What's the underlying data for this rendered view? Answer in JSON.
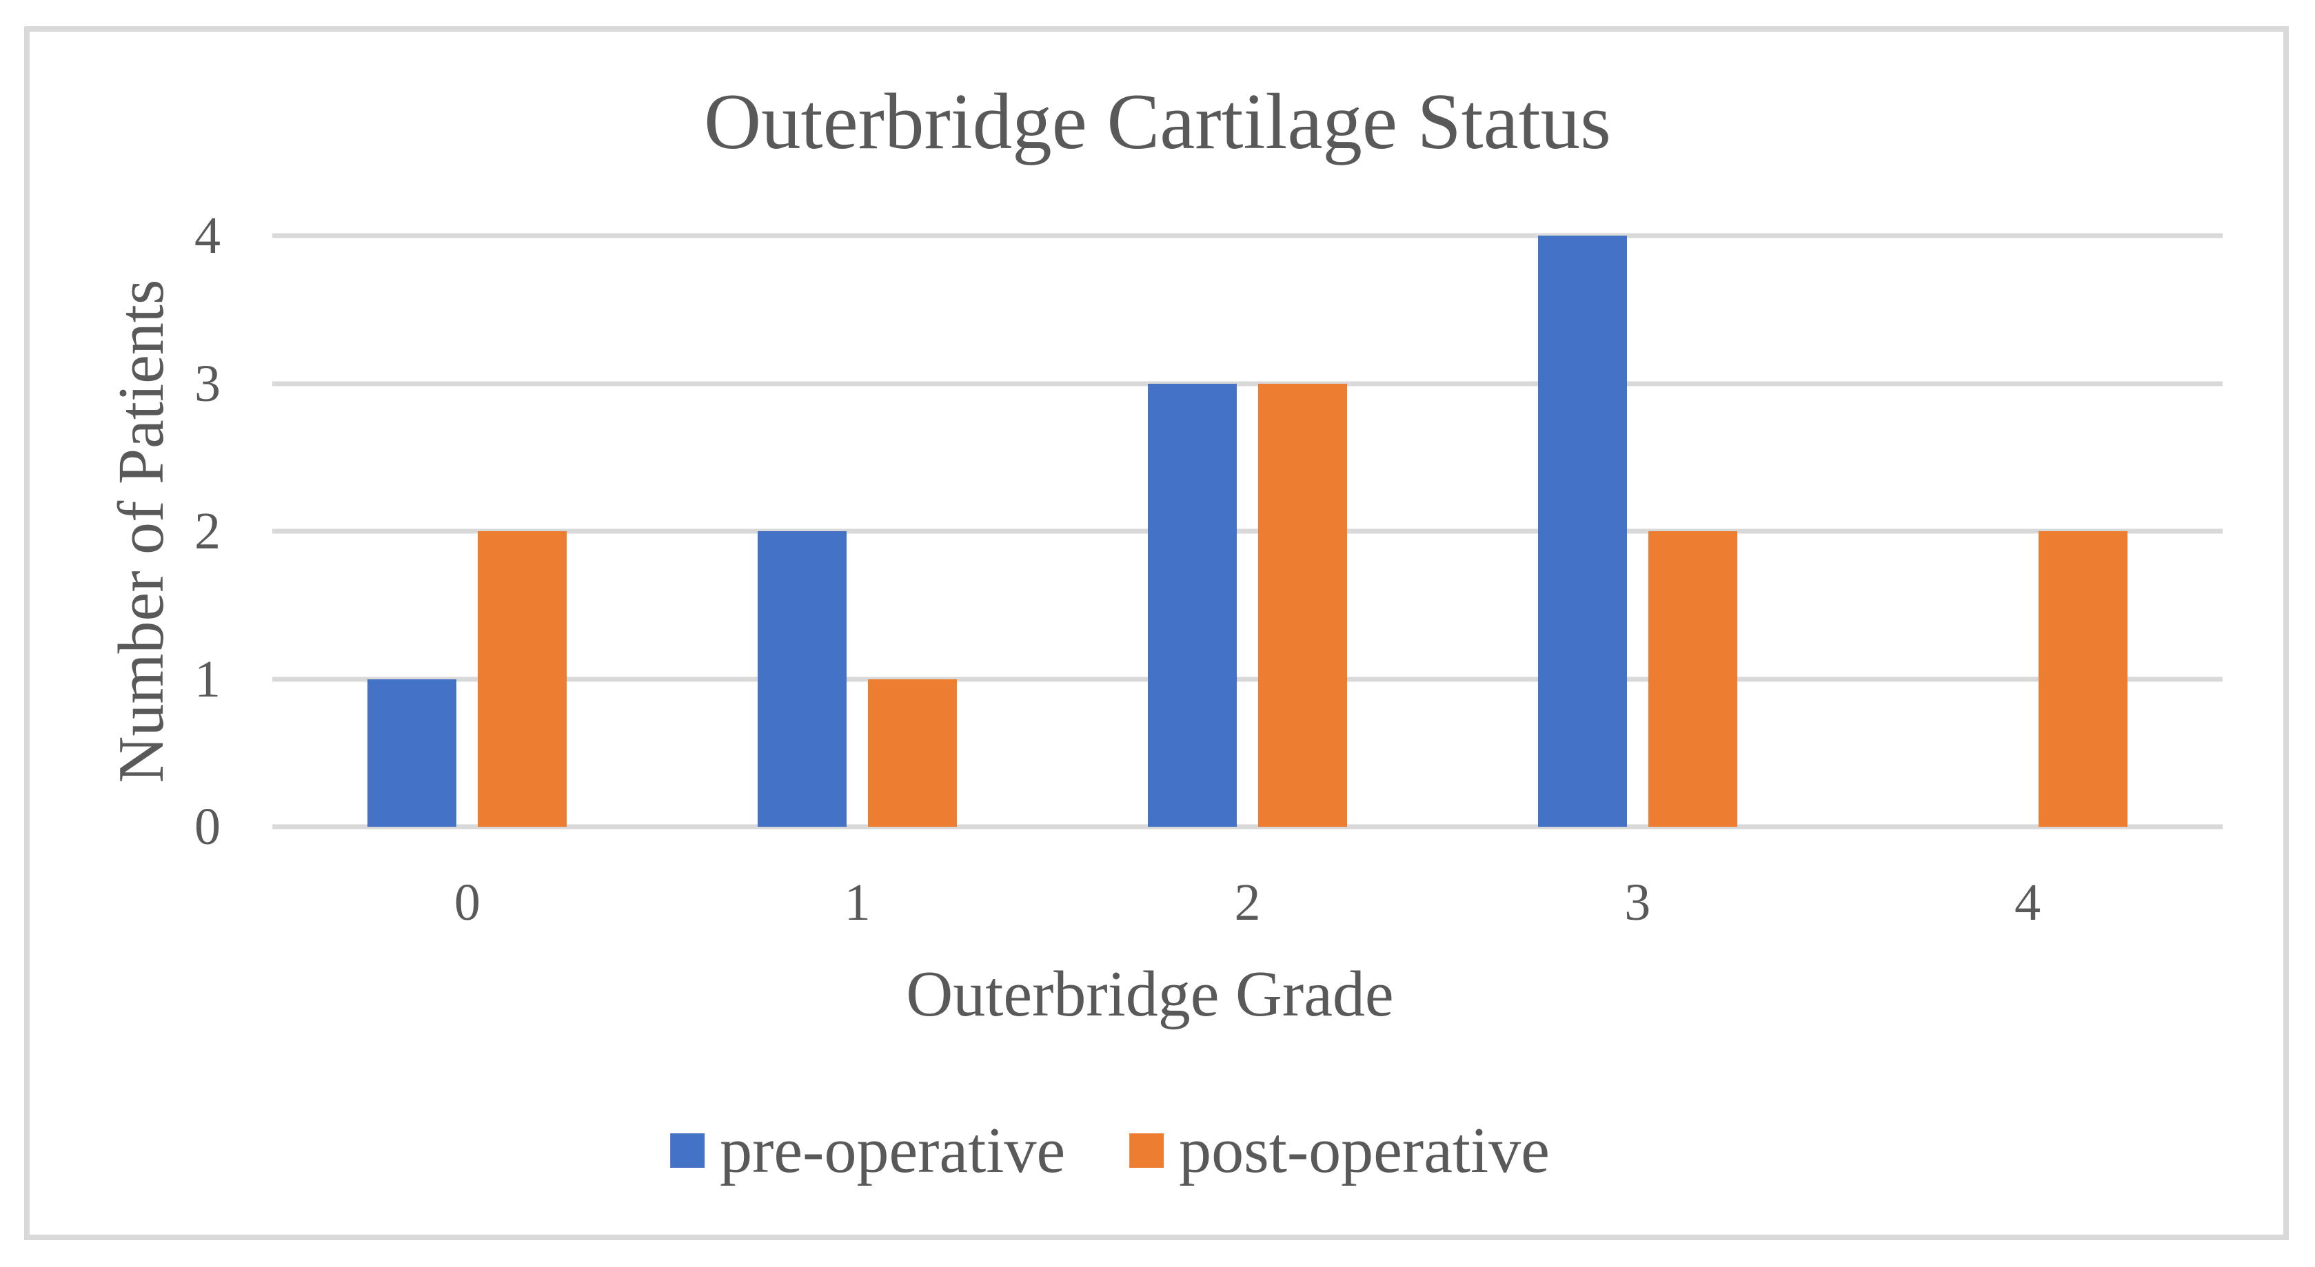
{
  "figure": {
    "background": "#FFFFFF",
    "border_color": "#D9D9D9",
    "text_color": "#595959"
  },
  "chart_data": {
    "type": "bar",
    "title": "Outerbridge Cartilage Status",
    "xlabel": "Outerbridge Grade",
    "ylabel": "Number of Patients",
    "categories": [
      "0",
      "1",
      "2",
      "3",
      "4"
    ],
    "series": [
      {
        "name": "pre-operative",
        "color": "#4472C4",
        "values": [
          1,
          2,
          3,
          4,
          0
        ]
      },
      {
        "name": "post-operative",
        "color": "#ED7D31",
        "values": [
          2,
          1,
          3,
          2,
          2
        ]
      }
    ],
    "ylim": [
      0,
      4
    ],
    "yticks": [
      0,
      1,
      2,
      3,
      4
    ],
    "grid": "horizontal",
    "gridline_color": "#D9D9D9",
    "legend_position": "bottom"
  }
}
